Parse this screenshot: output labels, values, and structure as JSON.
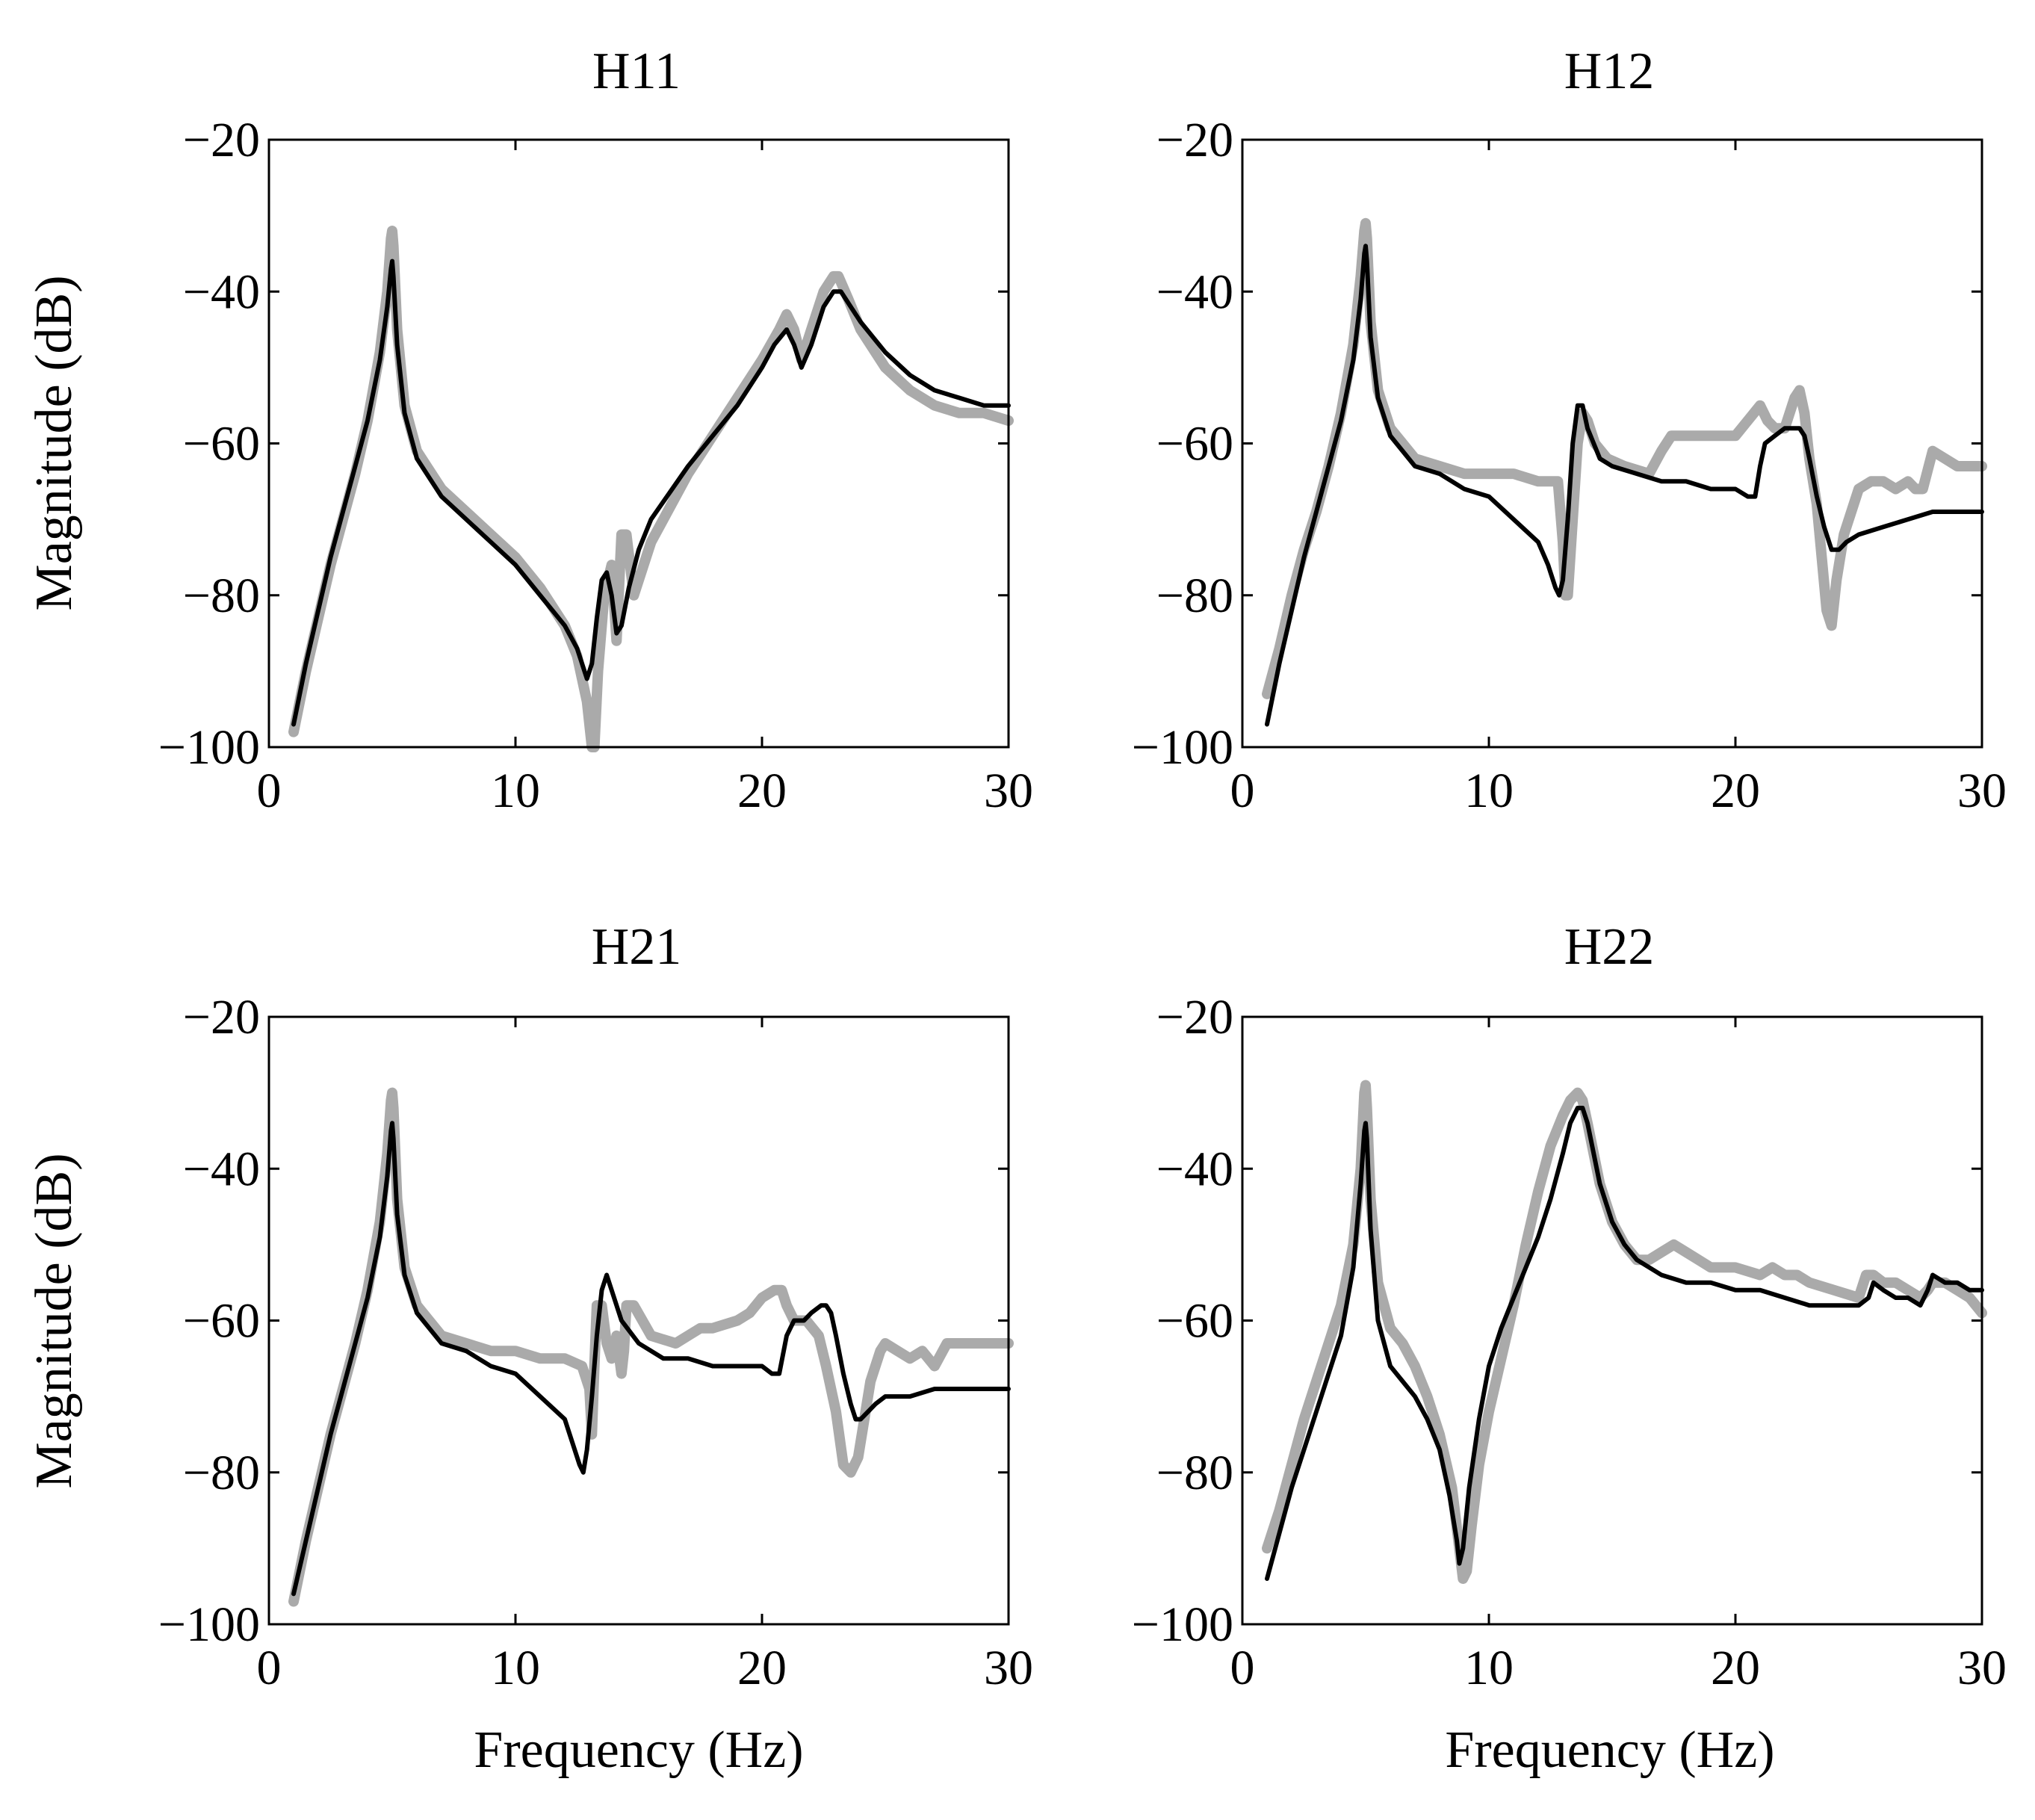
{
  "chart_data": [
    {
      "type": "line",
      "title": "H11",
      "xlabel": "",
      "ylabel": "Magnitude (dB)",
      "xlim": [
        0,
        30
      ],
      "ylim": [
        -100,
        -20
      ],
      "xticks": [
        "0",
        "10",
        "20",
        "30"
      ],
      "yticks": [
        "−20",
        "−40",
        "−60",
        "−80",
        "−100"
      ],
      "grid": false,
      "series": [
        {
          "color": "#aaaaaa",
          "x": [
            1,
            1.5,
            2,
            2.5,
            3,
            3.5,
            4,
            4.5,
            4.8,
            4.95,
            5,
            5.05,
            5.2,
            5.5,
            6,
            7,
            8,
            9,
            10,
            11,
            12,
            12.5,
            12.9,
            13.1,
            13.2,
            13.35,
            13.6,
            13.9,
            14.1,
            14.3,
            14.5,
            14.8,
            15.5,
            17,
            18,
            19,
            20,
            20.7,
            21,
            21.3,
            21.6,
            22,
            22.5,
            22.9,
            23.1,
            23.5,
            24,
            25,
            26,
            27,
            28,
            29,
            30
          ],
          "y": [
            -98,
            -90,
            -83,
            -76,
            -70,
            -64,
            -57,
            -48,
            -40,
            -33,
            -32,
            -34,
            -45,
            -55,
            -61,
            -66,
            -69,
            -72,
            -75,
            -79,
            -84,
            -88,
            -94,
            -100,
            -100,
            -90,
            -80,
            -76,
            -86,
            -72,
            -72,
            -80,
            -73,
            -64,
            -59,
            -54,
            -49,
            -45,
            -43,
            -45,
            -49,
            -45,
            -40,
            -38,
            -38,
            -41,
            -45,
            -50,
            -53,
            -55,
            -56,
            -56,
            -57
          ]
        },
        {
          "color": "#000000",
          "x": [
            1,
            1.5,
            2,
            2.5,
            3,
            3.5,
            4,
            4.5,
            4.8,
            4.95,
            5,
            5.05,
            5.2,
            5.5,
            6,
            7,
            8,
            9,
            10,
            11,
            12,
            12.5,
            12.9,
            13.1,
            13.3,
            13.5,
            13.7,
            13.9,
            14.1,
            14.3,
            14.6,
            15,
            15.5,
            17,
            18,
            19,
            20,
            20.5,
            21,
            21.3,
            21.6,
            22,
            22.5,
            22.9,
            23.2,
            23.6,
            24,
            25,
            26,
            27,
            28,
            29,
            30
          ],
          "y": [
            -97,
            -89,
            -82,
            -75,
            -69,
            -63,
            -57,
            -49,
            -42,
            -37,
            -36,
            -38,
            -47,
            -56,
            -62,
            -67,
            -70,
            -73,
            -76,
            -80,
            -84,
            -87,
            -91,
            -89,
            -83,
            -78,
            -77,
            -80,
            -85,
            -84,
            -79,
            -74,
            -70,
            -63,
            -59,
            -55,
            -50,
            -47,
            -45,
            -47,
            -50,
            -47,
            -42,
            -40,
            -40,
            -42,
            -44,
            -48,
            -51,
            -53,
            -54,
            -55,
            -55
          ]
        }
      ]
    },
    {
      "type": "line",
      "title": "H12",
      "xlabel": "",
      "ylabel": "",
      "xlim": [
        0,
        30
      ],
      "ylim": [
        -100,
        -20
      ],
      "xticks": [
        "0",
        "10",
        "20",
        "30"
      ],
      "yticks": [
        "−20",
        "−40",
        "−60",
        "−80",
        "−100"
      ],
      "grid": false,
      "series": [
        {
          "color": "#aaaaaa",
          "x": [
            1,
            1.5,
            2,
            2.5,
            3,
            3.5,
            4,
            4.5,
            4.8,
            4.95,
            5,
            5.05,
            5.2,
            5.5,
            6,
            7,
            8,
            9,
            10,
            11,
            12,
            12.8,
            13,
            13.1,
            13.2,
            13.4,
            13.6,
            13.8,
            14,
            14.3,
            14.8,
            15.5,
            16.5,
            17,
            17.4,
            18,
            19,
            20,
            20.5,
            21,
            21.3,
            21.6,
            22,
            22.4,
            22.6,
            22.8,
            23,
            23.3,
            23.5,
            23.7,
            23.9,
            24.1,
            24.4,
            24.8,
            25,
            25.5,
            26,
            26.5,
            27,
            27.3,
            27.6,
            28,
            28.5,
            29,
            30
          ],
          "y": [
            -93,
            -87,
            -80,
            -74,
            -69,
            -63,
            -56,
            -47,
            -38,
            -32,
            -31,
            -33,
            -44,
            -53,
            -58,
            -62,
            -63,
            -64,
            -64,
            -64,
            -65,
            -65,
            -73,
            -80,
            -80,
            -70,
            -60,
            -56,
            -57,
            -60,
            -62,
            -63,
            -64,
            -61,
            -59,
            -59,
            -59,
            -59,
            -57,
            -55,
            -57,
            -58,
            -58,
            -54,
            -53,
            -56,
            -62,
            -68,
            -75,
            -82,
            -84,
            -78,
            -72,
            -68,
            -66,
            -65,
            -65,
            -66,
            -65,
            -66,
            -66,
            -61,
            -62,
            -63,
            -63
          ]
        },
        {
          "color": "#000000",
          "x": [
            1,
            1.5,
            2,
            2.5,
            3,
            3.5,
            4,
            4.5,
            4.8,
            4.95,
            5,
            5.05,
            5.2,
            5.5,
            6,
            7,
            8,
            9,
            10,
            11,
            12,
            12.4,
            12.7,
            12.85,
            13,
            13.2,
            13.4,
            13.6,
            13.8,
            14,
            14.5,
            15,
            16,
            17,
            18,
            19,
            20,
            20.5,
            20.8,
            21,
            21.2,
            21.6,
            22,
            22.4,
            22.6,
            22.8,
            23,
            23.3,
            23.6,
            23.9,
            24.2,
            24.5,
            25,
            26,
            27,
            28,
            29,
            30
          ],
          "y": [
            -97,
            -89,
            -82,
            -75,
            -69,
            -63,
            -57,
            -49,
            -41,
            -35,
            -34,
            -36,
            -46,
            -54,
            -59,
            -63,
            -64,
            -66,
            -67,
            -70,
            -73,
            -76,
            -79,
            -80,
            -78,
            -70,
            -60,
            -55,
            -55,
            -58,
            -62,
            -63,
            -64,
            -65,
            -65,
            -66,
            -66,
            -67,
            -67,
            -63,
            -60,
            -59,
            -58,
            -58,
            -58,
            -59,
            -62,
            -67,
            -71,
            -74,
            -74,
            -73,
            -72,
            -71,
            -70,
            -69,
            -69,
            -69
          ]
        }
      ]
    },
    {
      "type": "line",
      "title": "H21",
      "xlabel": "Frequency (Hz)",
      "ylabel": "Magnitude (dB)",
      "xlim": [
        0,
        30
      ],
      "ylim": [
        -100,
        -20
      ],
      "xticks": [
        "0",
        "10",
        "20",
        "30"
      ],
      "yticks": [
        "−20",
        "−40",
        "−60",
        "−80",
        "−100"
      ],
      "grid": false,
      "series": [
        {
          "color": "#aaaaaa",
          "x": [
            1,
            1.5,
            2,
            2.5,
            3,
            3.5,
            4,
            4.5,
            4.8,
            4.95,
            5,
            5.05,
            5.2,
            5.5,
            6,
            7,
            8,
            9,
            10,
            11,
            12,
            12.7,
            13,
            13.1,
            13.2,
            13.3,
            13.5,
            13.7,
            13.9,
            14.1,
            14.3,
            14.4,
            14.5,
            14.8,
            15.5,
            16.5,
            17,
            17.5,
            18,
            19,
            19.5,
            20,
            20.5,
            20.8,
            21,
            21.3,
            21.8,
            22.3,
            22.6,
            23,
            23.3,
            23.6,
            23.9,
            24.1,
            24.4,
            24.8,
            25,
            25.5,
            26,
            26.5,
            27,
            27.5,
            28,
            29,
            30
          ],
          "y": [
            -97,
            -89,
            -82,
            -75,
            -69,
            -63,
            -56,
            -47,
            -38,
            -31,
            -30,
            -32,
            -44,
            -53,
            -58,
            -62,
            -63,
            -64,
            -64,
            -65,
            -65,
            -66,
            -69,
            -75,
            -66,
            -58,
            -58,
            -63,
            -65,
            -62,
            -67,
            -64,
            -58,
            -58,
            -62,
            -63,
            -62,
            -61,
            -61,
            -60,
            -59,
            -57,
            -56,
            -56,
            -58,
            -60,
            -60,
            -62,
            -66,
            -72,
            -79,
            -80,
            -78,
            -74,
            -68,
            -64,
            -63,
            -64,
            -65,
            -64,
            -66,
            -63,
            -63,
            -63,
            -63
          ]
        },
        {
          "color": "#000000",
          "x": [
            1,
            1.5,
            2,
            2.5,
            3,
            3.5,
            4,
            4.5,
            4.8,
            4.95,
            5,
            5.05,
            5.2,
            5.5,
            6,
            7,
            8,
            9,
            10,
            11,
            12,
            12.3,
            12.6,
            12.75,
            12.9,
            13.1,
            13.3,
            13.5,
            13.7,
            13.9,
            14.3,
            15,
            16,
            17,
            18,
            19,
            20,
            20.4,
            20.7,
            21,
            21.3,
            21.7,
            22,
            22.4,
            22.6,
            22.8,
            23,
            23.3,
            23.6,
            23.8,
            24,
            24.3,
            24.6,
            25,
            26,
            27,
            28,
            29,
            30
          ],
          "y": [
            -96,
            -89,
            -82,
            -75,
            -69,
            -63,
            -57,
            -49,
            -41,
            -35,
            -34,
            -36,
            -46,
            -54,
            -59,
            -63,
            -64,
            -66,
            -67,
            -70,
            -73,
            -76,
            -79,
            -80,
            -77,
            -70,
            -62,
            -56,
            -54,
            -56,
            -60,
            -63,
            -65,
            -65,
            -66,
            -66,
            -66,
            -67,
            -67,
            -62,
            -60,
            -60,
            -59,
            -58,
            -58,
            -59,
            -62,
            -67,
            -71,
            -73,
            -73,
            -72,
            -71,
            -70,
            -70,
            -69,
            -69,
            -69,
            -69
          ]
        }
      ]
    },
    {
      "type": "line",
      "title": "H22",
      "xlabel": "Frequency (Hz)",
      "ylabel": "",
      "xlim": [
        0,
        30
      ],
      "ylim": [
        -100,
        -20
      ],
      "xticks": [
        "0",
        "10",
        "20",
        "30"
      ],
      "yticks": [
        "−20",
        "−40",
        "−60",
        "−80",
        "−100"
      ],
      "grid": false,
      "series": [
        {
          "color": "#aaaaaa",
          "x": [
            1,
            1.5,
            2,
            2.5,
            3,
            3.5,
            4,
            4.5,
            4.8,
            4.95,
            5,
            5.05,
            5.2,
            5.5,
            6,
            6.5,
            7,
            7.5,
            8,
            8.5,
            8.8,
            8.95,
            9.1,
            9.3,
            9.6,
            10,
            10.5,
            11,
            11.5,
            12,
            12.5,
            13,
            13.3,
            13.6,
            13.8,
            14,
            14.5,
            15,
            15.5,
            16,
            16.5,
            17,
            17.5,
            18,
            18.5,
            19,
            19.5,
            20,
            21,
            21.5,
            22,
            22.5,
            23,
            24,
            25,
            25.3,
            25.6,
            26,
            26.5,
            27,
            27.5,
            27.8,
            28,
            28.5,
            29,
            29.5,
            30
          ],
          "y": [
            -90,
            -85,
            -79,
            -73,
            -68,
            -63,
            -58,
            -50,
            -40,
            -30,
            -29,
            -32,
            -44,
            -55,
            -61,
            -63,
            -66,
            -70,
            -75,
            -82,
            -90,
            -94,
            -93,
            -87,
            -79,
            -72,
            -65,
            -58,
            -50,
            -43,
            -37,
            -33,
            -31,
            -30,
            -31,
            -34,
            -42,
            -47,
            -50,
            -52,
            -52,
            -51,
            -50,
            -51,
            -52,
            -53,
            -53,
            -53,
            -54,
            -53,
            -54,
            -54,
            -55,
            -56,
            -57,
            -54,
            -54,
            -55,
            -55,
            -56,
            -57,
            -56,
            -55,
            -55,
            -56,
            -57,
            -59
          ]
        },
        {
          "color": "#000000",
          "x": [
            1,
            1.5,
            2,
            2.5,
            3,
            3.5,
            4,
            4.5,
            4.8,
            4.95,
            5,
            5.05,
            5.2,
            5.5,
            6,
            6.5,
            7,
            7.5,
            8,
            8.4,
            8.7,
            8.8,
            8.95,
            9.2,
            9.6,
            10,
            10.5,
            11,
            11.5,
            12,
            12.5,
            13,
            13.3,
            13.6,
            13.8,
            14,
            14.5,
            15,
            15.5,
            16,
            17,
            18,
            19,
            20,
            21,
            22,
            23,
            24,
            25,
            25.4,
            25.6,
            26,
            26.5,
            27,
            27.5,
            27.8,
            28,
            28.5,
            29,
            29.5,
            30
          ],
          "y": [
            -94,
            -88,
            -82,
            -77,
            -72,
            -67,
            -62,
            -53,
            -42,
            -35,
            -34,
            -36,
            -48,
            -60,
            -66,
            -68,
            -70,
            -73,
            -77,
            -83,
            -89,
            -92,
            -90,
            -82,
            -73,
            -66,
            -61,
            -57,
            -53,
            -49,
            -44,
            -38,
            -34,
            -32,
            -32,
            -34,
            -42,
            -47,
            -50,
            -52,
            -54,
            -55,
            -55,
            -56,
            -56,
            -57,
            -58,
            -58,
            -58,
            -57,
            -55,
            -56,
            -57,
            -57,
            -58,
            -56,
            -54,
            -55,
            -55,
            -56,
            -56
          ]
        }
      ]
    }
  ]
}
